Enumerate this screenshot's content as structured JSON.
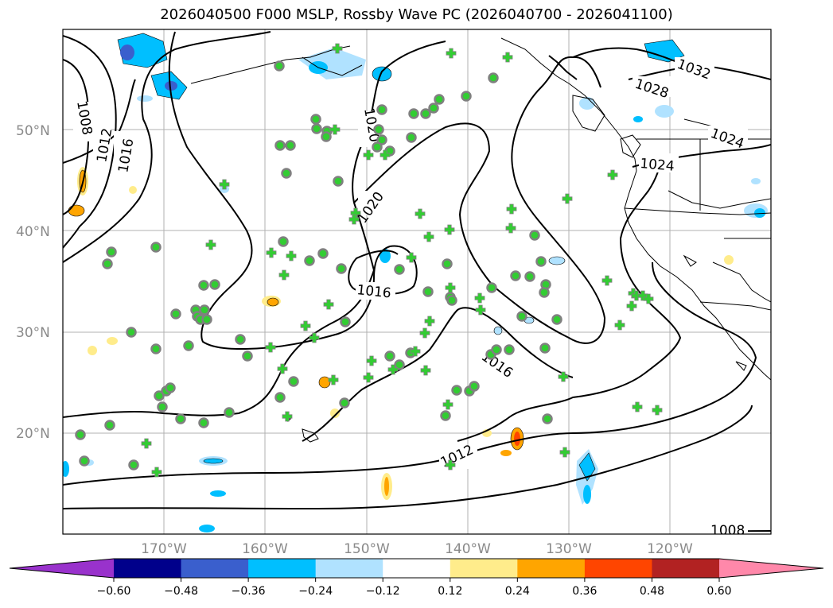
{
  "title": "2026040500 F000 MSLP, Rossby Wave PC (2026040700 - 2026041100)",
  "map": {
    "lat_labels": [
      "50°N",
      "40°N",
      "30°N",
      "20°N"
    ],
    "lon_labels": [
      "170°W",
      "160°W",
      "150°W",
      "140°W",
      "130°W",
      "120°W"
    ],
    "isobar_labels": [
      {
        "text": "1008"
      },
      {
        "text": "1012"
      },
      {
        "text": "1016"
      },
      {
        "text": "1020"
      },
      {
        "text": "1020"
      },
      {
        "text": "1016"
      },
      {
        "text": "1016"
      },
      {
        "text": "1012"
      },
      {
        "text": "1028"
      },
      {
        "text": "1032"
      },
      {
        "text": "1024"
      },
      {
        "text": "1024"
      },
      {
        "text": "1008"
      }
    ],
    "marker_colors": {
      "circle_fill": "#32cd32",
      "circle_stroke": "#808080",
      "cross": "#32cd32"
    }
  },
  "colorbar": {
    "ticks": [
      "−0.60",
      "−0.48",
      "−0.36",
      "−0.24",
      "−0.12",
      "0.12",
      "0.24",
      "0.36",
      "0.48",
      "0.60"
    ],
    "colors": [
      "#9932cc",
      "#00008b",
      "#3a5fcd",
      "#00bfff",
      "#b0e2ff",
      "#ffffff",
      "#ffec8b",
      "#ffa500",
      "#ff4500",
      "#b22222",
      "#ff88aa"
    ]
  }
}
